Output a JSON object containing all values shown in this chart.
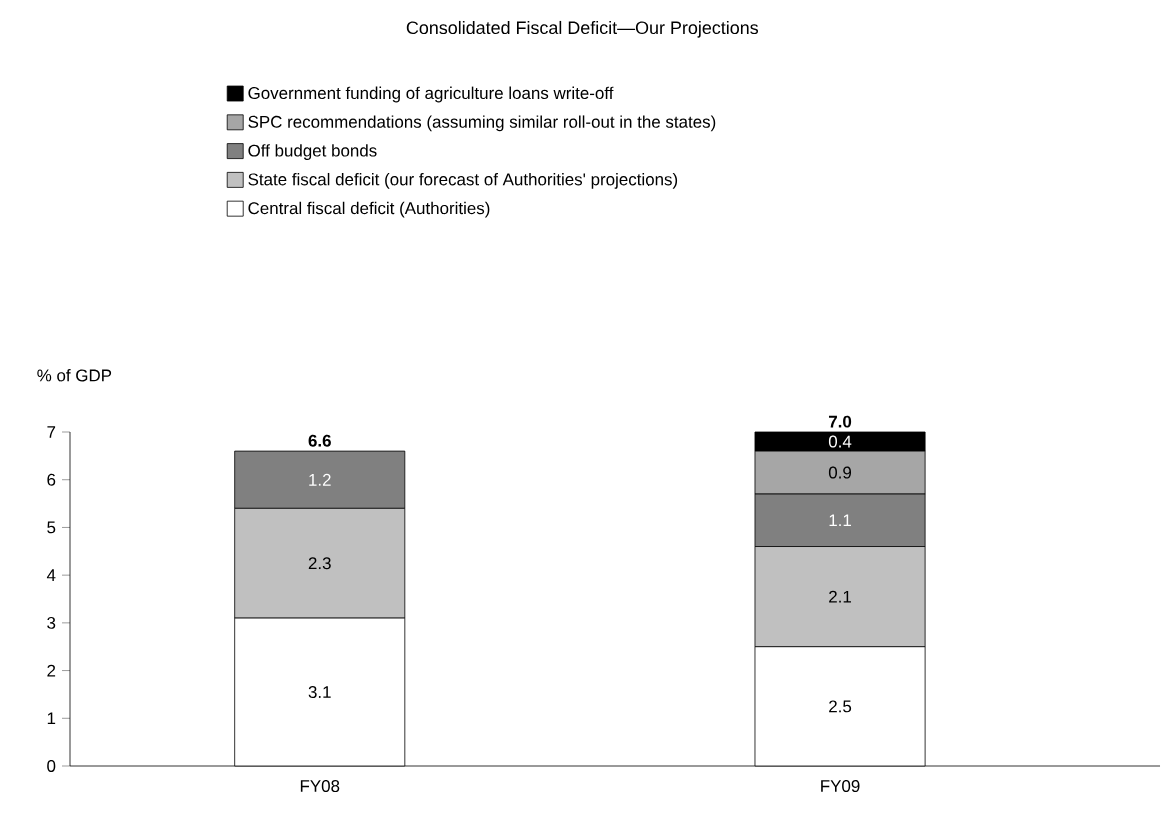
{
  "chart_data": {
    "type": "bar",
    "stacked": true,
    "title": "Consolidated Fiscal Deficit—Our Projections",
    "ylabel": "% of GDP",
    "categories": [
      "FY08",
      "FY09"
    ],
    "series": [
      {
        "name": "Central fiscal deficit (Authorities)",
        "color": "#ffffff",
        "values": [
          3.1,
          2.5
        ]
      },
      {
        "name": "State fiscal deficit (our forecast of Authorities' projections)",
        "color": "#c0c0c0",
        "values": [
          2.3,
          2.1
        ]
      },
      {
        "name": "Off budget bonds",
        "color": "#808080",
        "values": [
          1.2,
          1.1
        ]
      },
      {
        "name": "SPC recommendations (assuming similar roll-out in the states)",
        "color": "#a6a6a6",
        "values": [
          null,
          0.9
        ]
      },
      {
        "name": "Government funding of agriculture loans write-off",
        "color": "#000000",
        "values": [
          null,
          0.4
        ]
      }
    ],
    "ylim": [
      0,
      7
    ],
    "yticks": [
      0,
      1,
      2,
      3,
      4,
      5,
      6,
      7
    ],
    "data_labels": true,
    "totals": [
      "6.6",
      "7.0"
    ],
    "legend": "top",
    "grid": false
  }
}
